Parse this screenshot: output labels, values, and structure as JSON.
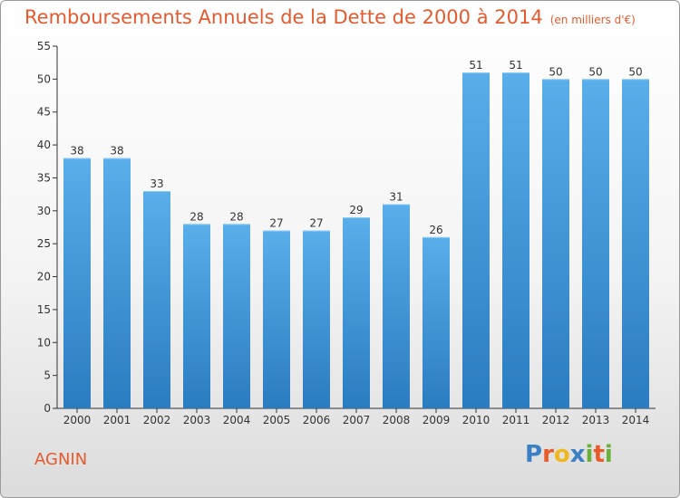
{
  "title": "Remboursements Annuels de la Dette de 2000 à 2014",
  "unit": "(en milliers d'€)",
  "place": "AGNIN",
  "brand": {
    "name": "Proxiti",
    "letters": [
      {
        "char": "P",
        "color": "#3b7fc4"
      },
      {
        "char": "r",
        "color": "#e85a2a"
      },
      {
        "char": "o",
        "color": "#f0b820"
      },
      {
        "char": "x",
        "color": "#3b7fc4"
      },
      {
        "char": "i",
        "color": "#6ab03a"
      },
      {
        "char": "t",
        "color": "#e85a2a"
      },
      {
        "char": "i",
        "color": "#6ab03a"
      }
    ]
  },
  "colors": {
    "title": "#e55a2e",
    "bar_top": "#5aaeea",
    "bar_bottom": "#2a7cc0",
    "axis": "#333333",
    "grid": "#cfd6dc"
  },
  "chart_data": {
    "type": "bar",
    "title": "Remboursements Annuels de la Dette de 2000 à 2014",
    "ylabel": "",
    "xlabel": "",
    "categories": [
      "2000",
      "2001",
      "2002",
      "2003",
      "2004",
      "2005",
      "2006",
      "2007",
      "2008",
      "2009",
      "2010",
      "2011",
      "2012",
      "2013",
      "2014"
    ],
    "values": [
      38,
      38,
      33,
      28,
      28,
      27,
      27,
      29,
      31,
      26,
      51,
      51,
      50,
      50,
      50
    ],
    "ylim": [
      0,
      55
    ],
    "yticks": [
      0,
      5,
      10,
      15,
      20,
      25,
      30,
      35,
      40,
      45,
      50,
      55
    ],
    "grid": false,
    "data_labels": true
  }
}
